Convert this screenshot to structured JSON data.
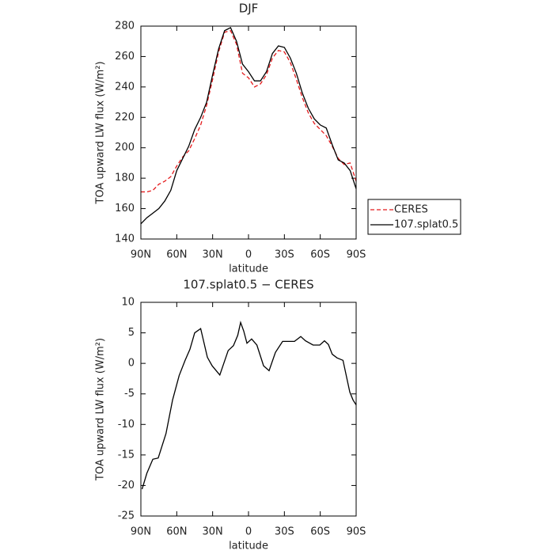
{
  "chart_data": [
    {
      "type": "line",
      "title": "DJF",
      "x_label": "latitude",
      "y_label": "TOA upward LW flux (W/m²)",
      "x": [
        90,
        85,
        80,
        75,
        70,
        65,
        60,
        55,
        50,
        45,
        40,
        35,
        30,
        25,
        20,
        15,
        10,
        5,
        0,
        -5,
        -10,
        -15,
        -20,
        -25,
        -30,
        -35,
        -40,
        -45,
        -50,
        -55,
        -60,
        -65,
        -70,
        -75,
        -80,
        -85,
        -90
      ],
      "series": [
        {
          "name": "CERES",
          "color": "#e41a1c",
          "dash": true,
          "values": [
            171,
            171,
            172,
            176,
            178,
            181,
            188,
            194,
            198,
            206,
            215,
            228,
            245,
            263,
            276,
            277,
            268,
            249,
            246,
            240,
            242,
            248,
            259,
            264,
            263,
            256,
            245,
            233,
            223,
            216,
            212,
            208,
            201,
            193,
            189,
            190,
            178
          ]
        },
        {
          "name": "107.splat0.5",
          "color": "#000000",
          "dash": false,
          "values": [
            150,
            154,
            157,
            160,
            165,
            172,
            185,
            193,
            201,
            212,
            220,
            230,
            248,
            265,
            277,
            279,
            270,
            255,
            250,
            244,
            244,
            250,
            262,
            267,
            266,
            259,
            249,
            236,
            226,
            219,
            215,
            213,
            202,
            192,
            190,
            185,
            173
          ]
        }
      ],
      "xlim": [
        90,
        -90
      ],
      "xticks": [
        {
          "value": 90,
          "label": "90N"
        },
        {
          "value": 60,
          "label": "60N"
        },
        {
          "value": 30,
          "label": "30N"
        },
        0,
        {
          "value": -30,
          "label": "30S"
        },
        {
          "value": -60,
          "label": "60S"
        },
        {
          "value": -90,
          "label": "90S"
        }
      ],
      "ylim": [
        140,
        280
      ],
      "yticks": [
        140,
        160,
        180,
        200,
        220,
        240,
        260,
        280
      ],
      "legend": "right"
    },
    {
      "type": "line",
      "title": "107.splat0.5 − CERES",
      "x_label": "latitude",
      "y_label": "TOA upward LW flux (W/m²)",
      "x": [
        89,
        85,
        80,
        75.5,
        69,
        63.5,
        58,
        53,
        49,
        45,
        40,
        34.4,
        30.4,
        24,
        17,
        12.6,
        9,
        6.6,
        4,
        1.3,
        -2.6,
        -7,
        -12.6,
        -17.2,
        -22.5,
        -28.5,
        -33,
        -38.4,
        -43.7,
        -47.6,
        -54,
        -59.6,
        -63.5,
        -66.8,
        -70,
        -74,
        -79,
        -84.7,
        -87.4,
        -90
      ],
      "series": [
        {
          "name": "107.splat0.5 − CERES",
          "color": "#000000",
          "dash": false,
          "values": [
            -20.6,
            -18,
            -15.7,
            -15.5,
            -11.5,
            -6,
            -2,
            0.5,
            2.3,
            5,
            5.7,
            1,
            -0.4,
            -1.9,
            2.1,
            2.9,
            4.6,
            6.7,
            5.3,
            3.3,
            4,
            3,
            -0.4,
            -1.2,
            1.8,
            3.6,
            3.6,
            3.6,
            4.4,
            3.7,
            3,
            3,
            3.7,
            3.1,
            1.5,
            0.9,
            0.5,
            -4.7,
            -6,
            -6.8
          ]
        }
      ],
      "xlim": [
        90,
        -90
      ],
      "xticks": [
        {
          "value": 90,
          "label": "90N"
        },
        {
          "value": 60,
          "label": "60N"
        },
        {
          "value": 30,
          "label": "30N"
        },
        0,
        {
          "value": -30,
          "label": "30S"
        },
        {
          "value": -60,
          "label": "60S"
        },
        {
          "value": -90,
          "label": "90S"
        }
      ],
      "ylim": [
        -25,
        10
      ],
      "yticks": [
        -25,
        -20,
        -15,
        -10,
        -5,
        0,
        5,
        10
      ]
    }
  ]
}
